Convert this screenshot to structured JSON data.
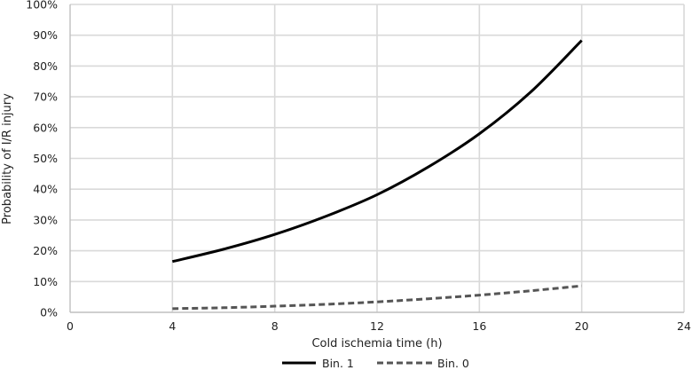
{
  "chart_data": {
    "type": "line",
    "title": "",
    "xlabel": "Cold ischemia time (h)",
    "ylabel": "Probability of I/R injury",
    "xlim": [
      0,
      24
    ],
    "ylim": [
      0,
      100
    ],
    "x_ticks": [
      0,
      4,
      8,
      12,
      16,
      20,
      24
    ],
    "y_ticks": [
      "0%",
      "10%",
      "20%",
      "30%",
      "40%",
      "50%",
      "60%",
      "70%",
      "80%",
      "90%",
      "100%"
    ],
    "grid": true,
    "legend_position": "bottom",
    "series": [
      {
        "name": "Bin. 1",
        "style": "solid",
        "color": "#000000",
        "x": [
          4,
          6,
          8,
          10,
          12,
          14,
          16,
          18,
          20
        ],
        "y": [
          16.5,
          20.5,
          25.3,
          31.2,
          38.2,
          47.2,
          58.0,
          71.5,
          88.3
        ]
      },
      {
        "name": "Bin. 0",
        "style": "dashed",
        "color": "#555555",
        "x": [
          4,
          6,
          8,
          10,
          12,
          14,
          16,
          18,
          20
        ],
        "y": [
          1.2,
          1.5,
          2.0,
          2.6,
          3.4,
          4.4,
          5.6,
          7.0,
          8.6
        ]
      }
    ]
  }
}
